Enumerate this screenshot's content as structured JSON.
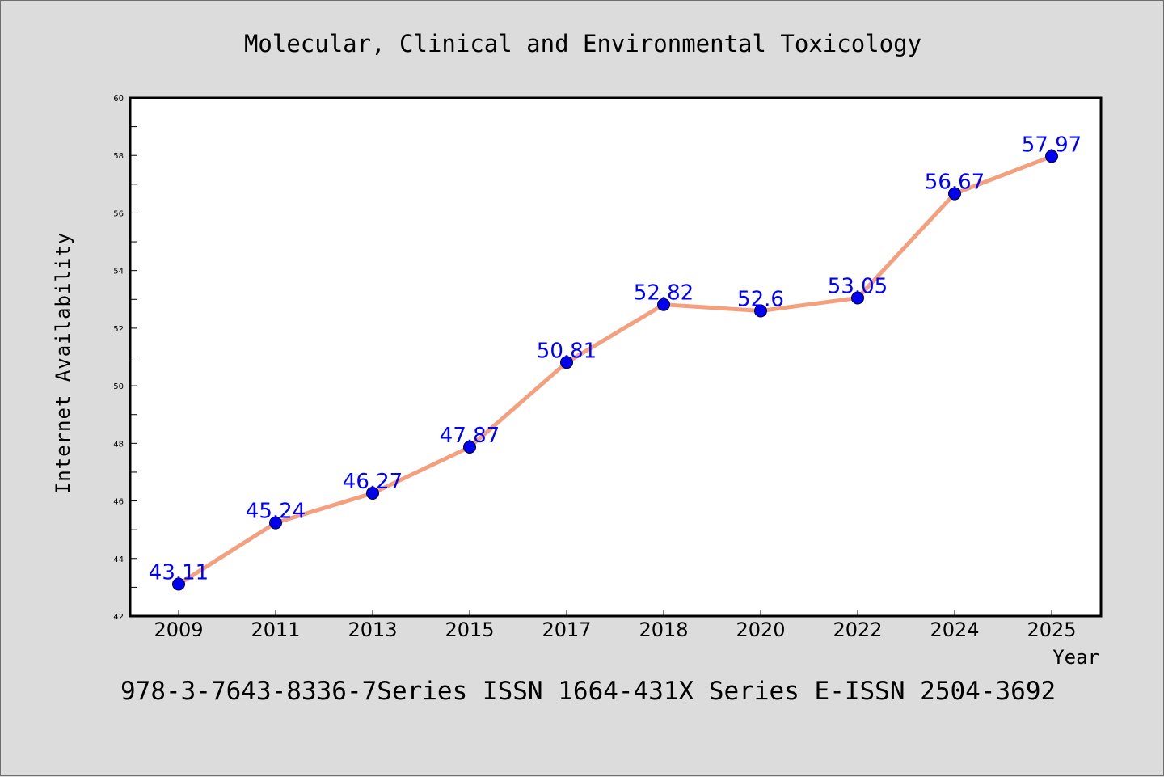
{
  "chart_data": {
    "type": "line",
    "title": "Molecular, Clinical and Environmental Toxicology",
    "xlabel": "Year",
    "ylabel": "Internet Availability",
    "categories": [
      "2009",
      "2011",
      "2013",
      "2015",
      "2017",
      "2018",
      "2020",
      "2022",
      "2024",
      "2025"
    ],
    "series": [
      {
        "values": [
          43.11,
          45.24,
          46.27,
          47.87,
          50.81,
          52.82,
          52.6,
          53.05,
          56.67,
          57.97
        ],
        "labels": [
          "43.11",
          "45.24",
          "46.27",
          "47.87",
          "50.81",
          "52.82",
          "52.6",
          "53.05",
          "56.67",
          "57.97"
        ],
        "line_color": "#f4a07e",
        "marker_color": "#0000ee",
        "label_color": "#0000ff"
      }
    ],
    "ylim": [
      42,
      60
    ],
    "yticks": [
      42,
      44,
      46,
      48,
      50,
      52,
      54,
      56,
      58,
      60
    ],
    "grid": false,
    "legend": "none"
  },
  "footer": "978-3-7643-8336-7Series ISSN 1664-431X Series E-ISSN 2504-3692",
  "colors": {
    "background": "#dcdcdc",
    "plot_area": "#ffffff",
    "axis": "#000000"
  }
}
